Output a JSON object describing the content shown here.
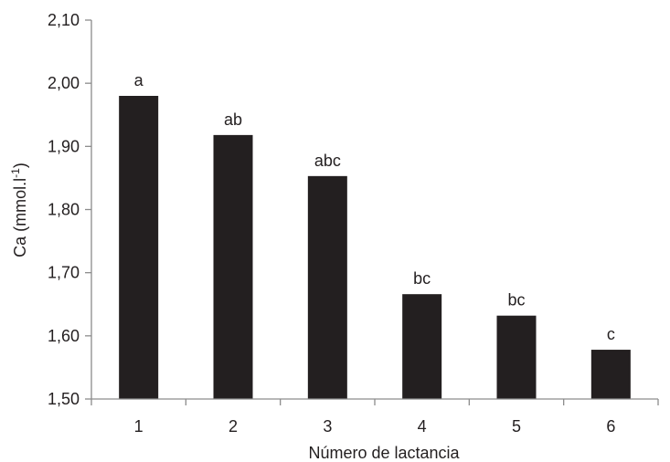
{
  "chart_data": {
    "type": "bar",
    "title": "",
    "xlabel": "Número de lactancia",
    "ylabel_main": "Ca (mmol.l",
    "ylabel_sup": "-1",
    "ylabel_end": ")",
    "categories": [
      "1",
      "2",
      "3",
      "4",
      "5",
      "6"
    ],
    "values": [
      1.98,
      1.918,
      1.853,
      1.666,
      1.632,
      1.578
    ],
    "bar_labels": [
      "a",
      "ab",
      "abc",
      "bc",
      "bc",
      "c"
    ],
    "ylim": [
      1.5,
      2.1
    ],
    "yticks": [
      1.5,
      1.6,
      1.7,
      1.8,
      1.9,
      2.0,
      2.1
    ],
    "ytick_labels": [
      "1,50",
      "1,60",
      "1,70",
      "1,80",
      "1,90",
      "2,00",
      "2,10"
    ],
    "grid": false,
    "legend": "none",
    "colors": {
      "bar": "#231f20",
      "axis": "#8c8c8c",
      "text": "#231f20"
    }
  }
}
